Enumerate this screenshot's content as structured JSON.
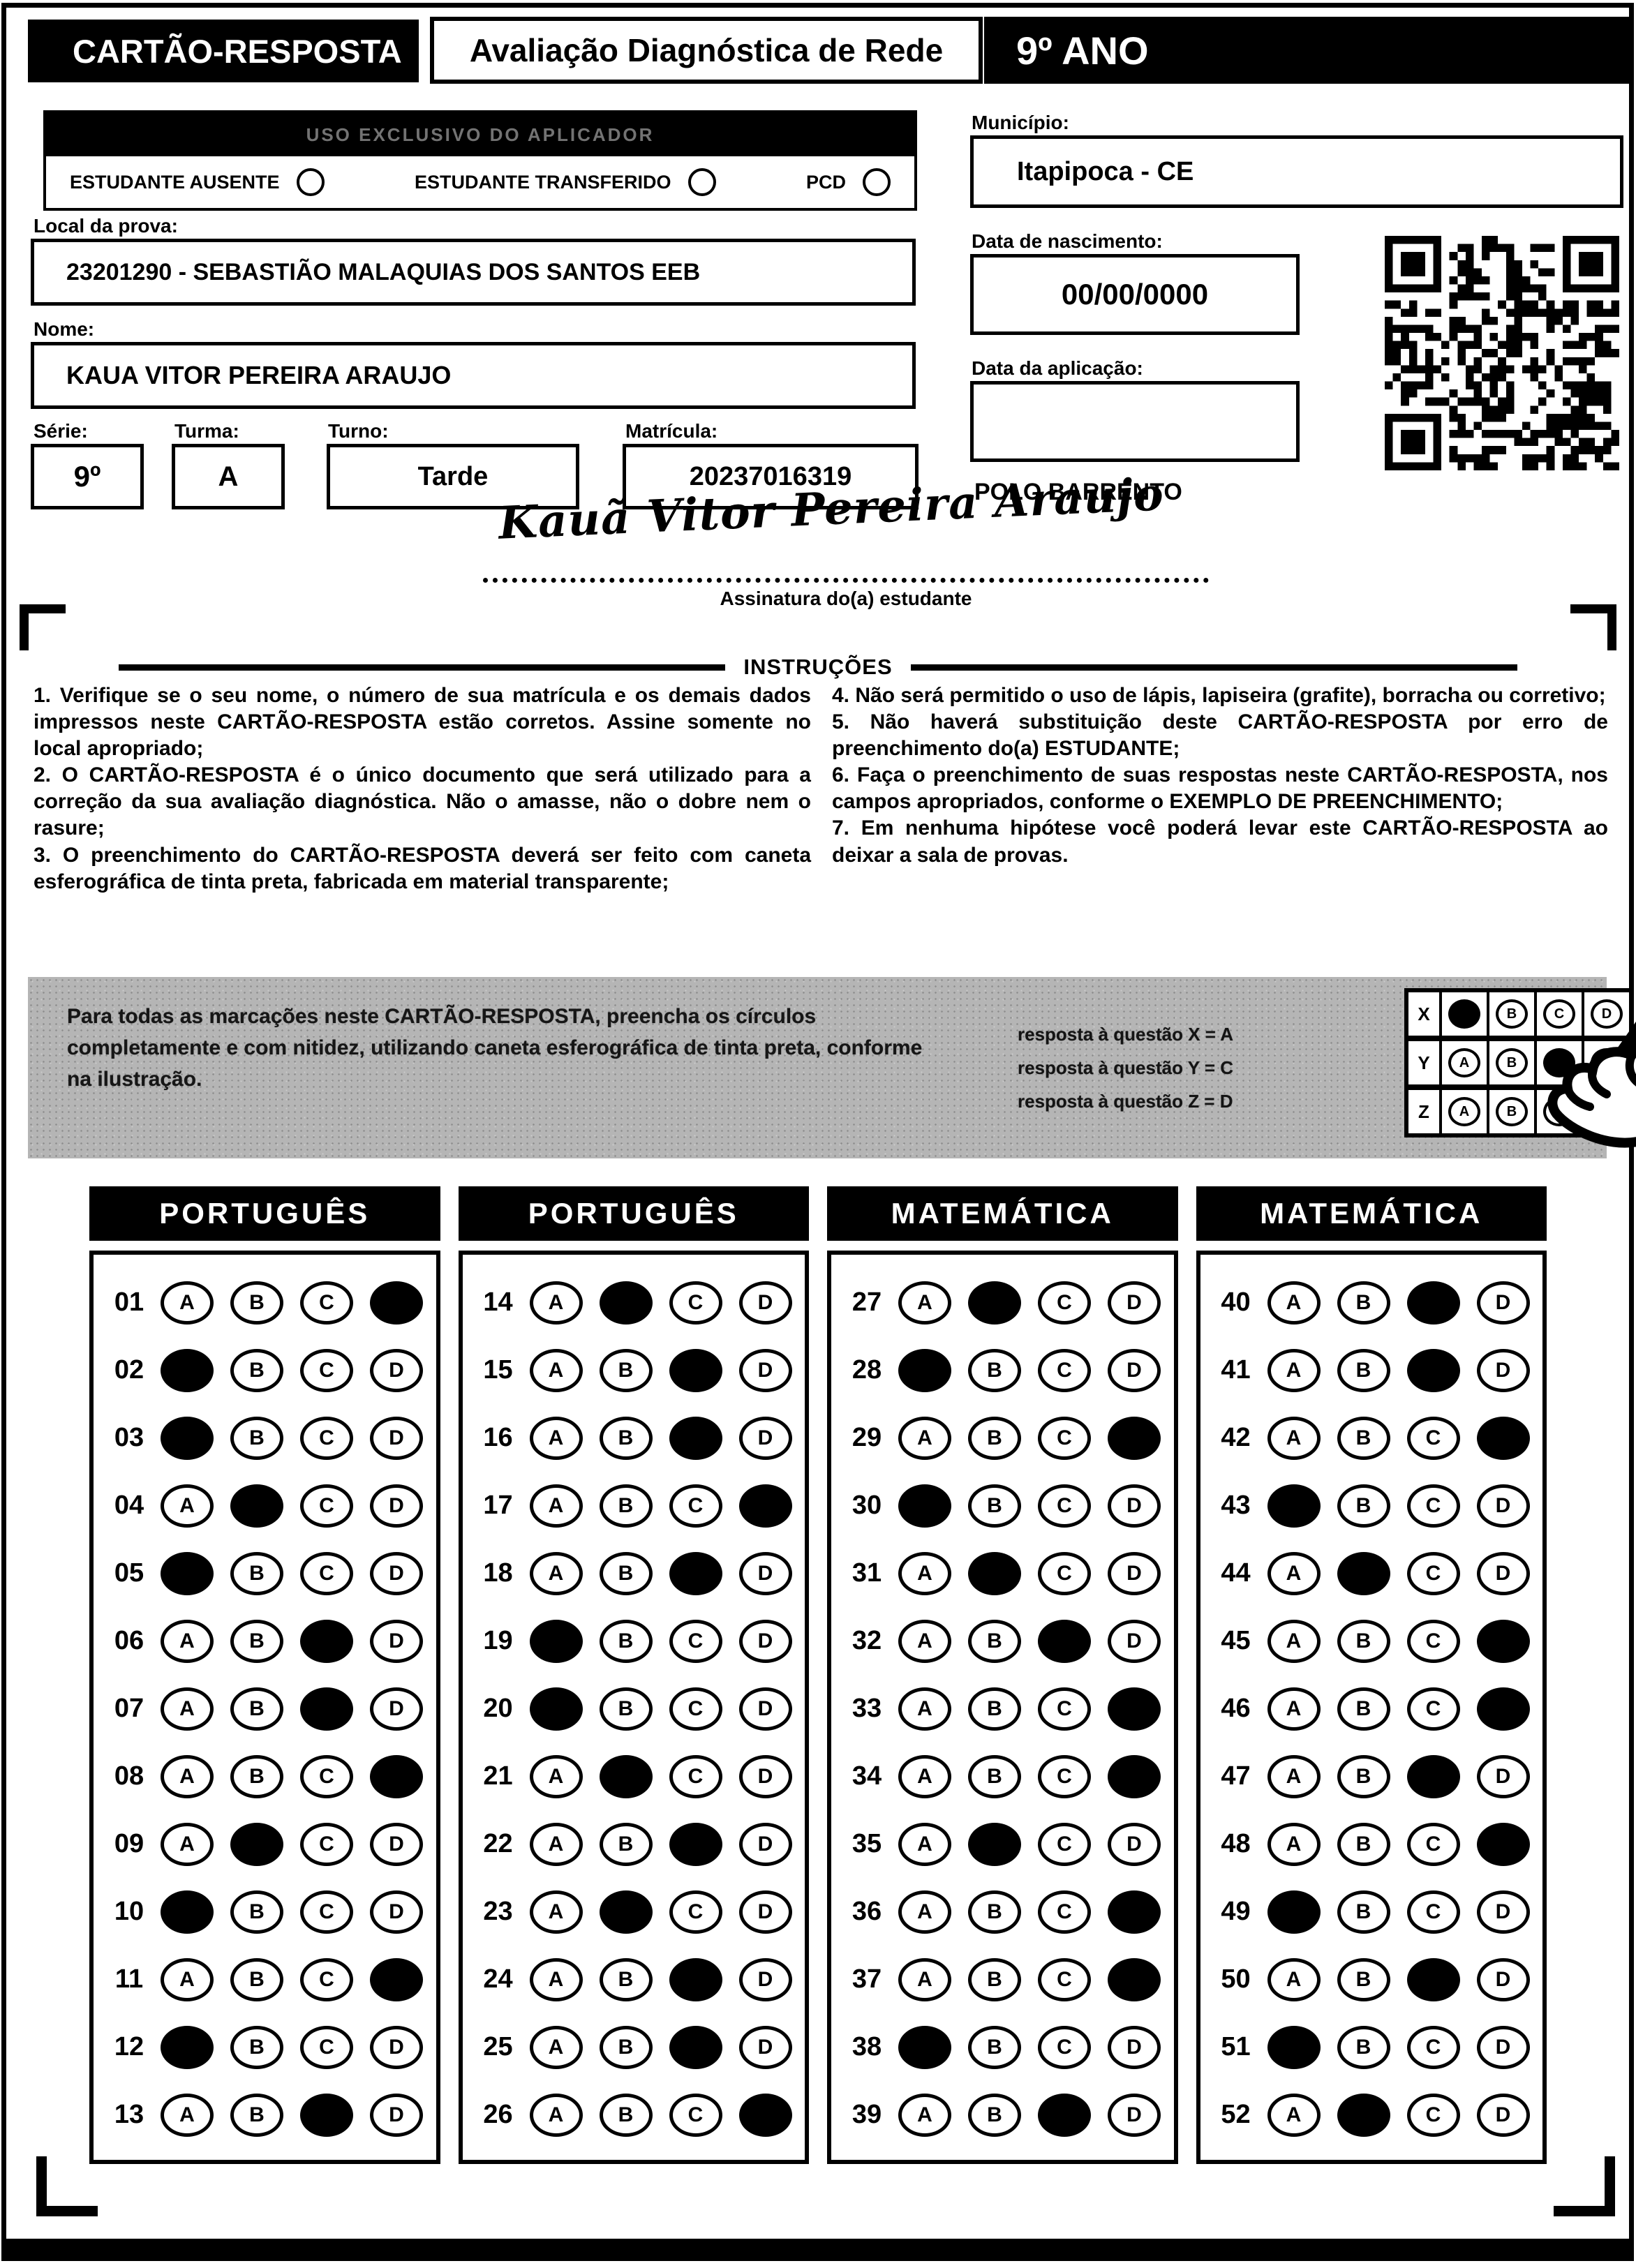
{
  "header": {
    "card_title": "CARTÃO-RESPOSTA",
    "assessment_title": "Avaliação Diagnóstica de Rede",
    "grade": "9º ANO"
  },
  "examiner": {
    "title": "USO EXCLUSIVO DO APLICADOR",
    "options": [
      "ESTUDANTE AUSENTE",
      "ESTUDANTE TRANSFERIDO",
      "PCD"
    ]
  },
  "form": {
    "local_label": "Local da prova:",
    "local_value": "23201290 - SEBASTIÃO MALAQUIAS DOS SANTOS EEB",
    "name_label": "Nome:",
    "name_value": "KAUA VITOR PEREIRA ARAUJO",
    "serie_label": "Série:",
    "serie_value": "9º",
    "turma_label": "Turma:",
    "turma_value": "A",
    "turno_label": "Turno:",
    "turno_value": "Tarde",
    "matricula_label": "Matrícula:",
    "matricula_value": "20237016319",
    "municipio_label": "Município:",
    "municipio_value": "Itapipoca - CE",
    "nascimento_label": "Data de nascimento:",
    "nascimento_value": "00/00/0000",
    "aplicacao_label": "Data da aplicação:",
    "aplicacao_value": "",
    "polo": "POLO BARRENTO"
  },
  "signature": {
    "handwritten": "Kauã Vitor Pereira Araujo",
    "label": "Assinatura do(a) estudante"
  },
  "instructions": {
    "title": "INSTRUÇÕES",
    "left": [
      "1. Verifique se o seu nome, o número de sua matrícula e os demais dados impressos neste CARTÃO-RESPOSTA estão corretos. Assine somente no local apropriado;",
      "2. O CARTÃO-RESPOSTA é o único documento que será utilizado para a correção da sua avaliação diagnóstica. Não o amasse, não o dobre nem o rasure;",
      "3. O preenchimento do CARTÃO-RESPOSTA deverá ser feito com caneta esferográfica de tinta preta, fabricada em material transparente;"
    ],
    "right": [
      "4. Não será permitido o uso de lápis, lapiseira (grafite), borracha ou corretivo;",
      "5. Não haverá substituição deste CARTÃO-RESPOSTA por erro de preenchimento do(a) ESTUDANTE;",
      "6. Faça o preenchimento de suas respostas neste CARTÃO-RESPOSTA, nos campos apropriados, conforme o EXEMPLO DE PREENCHIMENTO;",
      "7. Em nenhuma hipótese você poderá levar este CARTÃO-RESPOSTA ao deixar a sala de provas."
    ]
  },
  "example": {
    "text": "Para todas as marcações neste CARTÃO-RESPOSTA, preencha os círculos completamente e com nitidez, utilizando caneta esferográfica de tinta preta, conforme na ilustração.",
    "legend": [
      "resposta à questão X = A",
      "resposta à questão Y = C",
      "resposta à questão Z = D"
    ],
    "grid_rows": [
      {
        "label": "X",
        "filled": "A"
      },
      {
        "label": "Y",
        "filled": "C"
      },
      {
        "label": "Z",
        "filled": "D"
      }
    ]
  },
  "options": [
    "A",
    "B",
    "C",
    "D"
  ],
  "answer_sections": [
    {
      "subject": "PORTUGUÊS",
      "questions": [
        {
          "n": "01",
          "a": "D"
        },
        {
          "n": "02",
          "a": "A"
        },
        {
          "n": "03",
          "a": "A"
        },
        {
          "n": "04",
          "a": "B"
        },
        {
          "n": "05",
          "a": "A"
        },
        {
          "n": "06",
          "a": "C"
        },
        {
          "n": "07",
          "a": "C"
        },
        {
          "n": "08",
          "a": "D"
        },
        {
          "n": "09",
          "a": "B"
        },
        {
          "n": "10",
          "a": "A"
        },
        {
          "n": "11",
          "a": "D"
        },
        {
          "n": "12",
          "a": "A"
        },
        {
          "n": "13",
          "a": "C"
        }
      ]
    },
    {
      "subject": "PORTUGUÊS",
      "questions": [
        {
          "n": "14",
          "a": "B"
        },
        {
          "n": "15",
          "a": "C"
        },
        {
          "n": "16",
          "a": "C"
        },
        {
          "n": "17",
          "a": "D"
        },
        {
          "n": "18",
          "a": "C"
        },
        {
          "n": "19",
          "a": "A"
        },
        {
          "n": "20",
          "a": "A"
        },
        {
          "n": "21",
          "a": "B"
        },
        {
          "n": "22",
          "a": "C"
        },
        {
          "n": "23",
          "a": "B"
        },
        {
          "n": "24",
          "a": "C"
        },
        {
          "n": "25",
          "a": "C"
        },
        {
          "n": "26",
          "a": "D"
        }
      ]
    },
    {
      "subject": "MATEMÁTICA",
      "questions": [
        {
          "n": "27",
          "a": "B"
        },
        {
          "n": "28",
          "a": "A"
        },
        {
          "n": "29",
          "a": "D"
        },
        {
          "n": "30",
          "a": "A"
        },
        {
          "n": "31",
          "a": "B"
        },
        {
          "n": "32",
          "a": "C"
        },
        {
          "n": "33",
          "a": "D"
        },
        {
          "n": "34",
          "a": "D"
        },
        {
          "n": "35",
          "a": "B"
        },
        {
          "n": "36",
          "a": "D"
        },
        {
          "n": "37",
          "a": "D"
        },
        {
          "n": "38",
          "a": "A"
        },
        {
          "n": "39",
          "a": "C"
        }
      ]
    },
    {
      "subject": "MATEMÁTICA",
      "questions": [
        {
          "n": "40",
          "a": "C"
        },
        {
          "n": "41",
          "a": "C"
        },
        {
          "n": "42",
          "a": "D"
        },
        {
          "n": "43",
          "a": "A"
        },
        {
          "n": "44",
          "a": "B"
        },
        {
          "n": "45",
          "a": "D"
        },
        {
          "n": "46",
          "a": "D"
        },
        {
          "n": "47",
          "a": "C"
        },
        {
          "n": "48",
          "a": "D"
        },
        {
          "n": "49",
          "a": "A"
        },
        {
          "n": "50",
          "a": "C"
        },
        {
          "n": "51",
          "a": "A"
        },
        {
          "n": "52",
          "a": "B"
        }
      ]
    }
  ]
}
